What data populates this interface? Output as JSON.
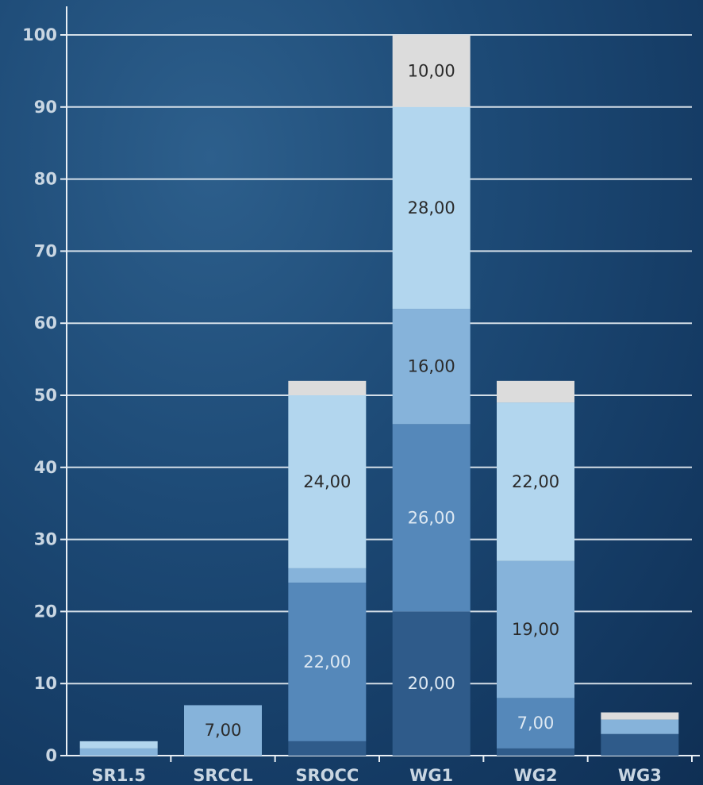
{
  "chart_data": {
    "type": "bar",
    "stacked": true,
    "categories": [
      "SR1.5",
      "SRCCL",
      "SROCC",
      "WG1",
      "WG2",
      "WG3"
    ],
    "ylim": [
      0,
      100
    ],
    "yticks": [
      0,
      10,
      20,
      30,
      40,
      50,
      60,
      70,
      80,
      90,
      100
    ],
    "grid": true,
    "series": [
      {
        "color": "#2f5b8a",
        "values": [
          0,
          0,
          2,
          20,
          1,
          3
        ]
      },
      {
        "color": "#5588ba",
        "values": [
          0,
          0,
          22,
          26,
          7,
          0
        ]
      },
      {
        "color": "#86b3da",
        "values": [
          1,
          7,
          2,
          16,
          19,
          2
        ]
      },
      {
        "color": "#b2d6ee",
        "values": [
          1,
          0,
          24,
          28,
          22,
          0
        ]
      },
      {
        "color": "#dcdcdc",
        "values": [
          0,
          0,
          2,
          10,
          3,
          1
        ]
      }
    ],
    "data_labels": [
      {
        "category": "SRCCL",
        "series": 2,
        "text": "7,00"
      },
      {
        "category": "SROCC",
        "series": 1,
        "text": "22,00"
      },
      {
        "category": "SROCC",
        "series": 3,
        "text": "24,00"
      },
      {
        "category": "WG1",
        "series": 0,
        "text": "20,00"
      },
      {
        "category": "WG1",
        "series": 1,
        "text": "26,00"
      },
      {
        "category": "WG1",
        "series": 2,
        "text": "16,00"
      },
      {
        "category": "WG1",
        "series": 3,
        "text": "28,00"
      },
      {
        "category": "WG1",
        "series": 4,
        "text": "10,00"
      },
      {
        "category": "WG2",
        "series": 1,
        "text": "7,00"
      },
      {
        "category": "WG2",
        "series": 2,
        "text": "19,00"
      },
      {
        "category": "WG2",
        "series": 3,
        "text": "22,00"
      }
    ]
  }
}
